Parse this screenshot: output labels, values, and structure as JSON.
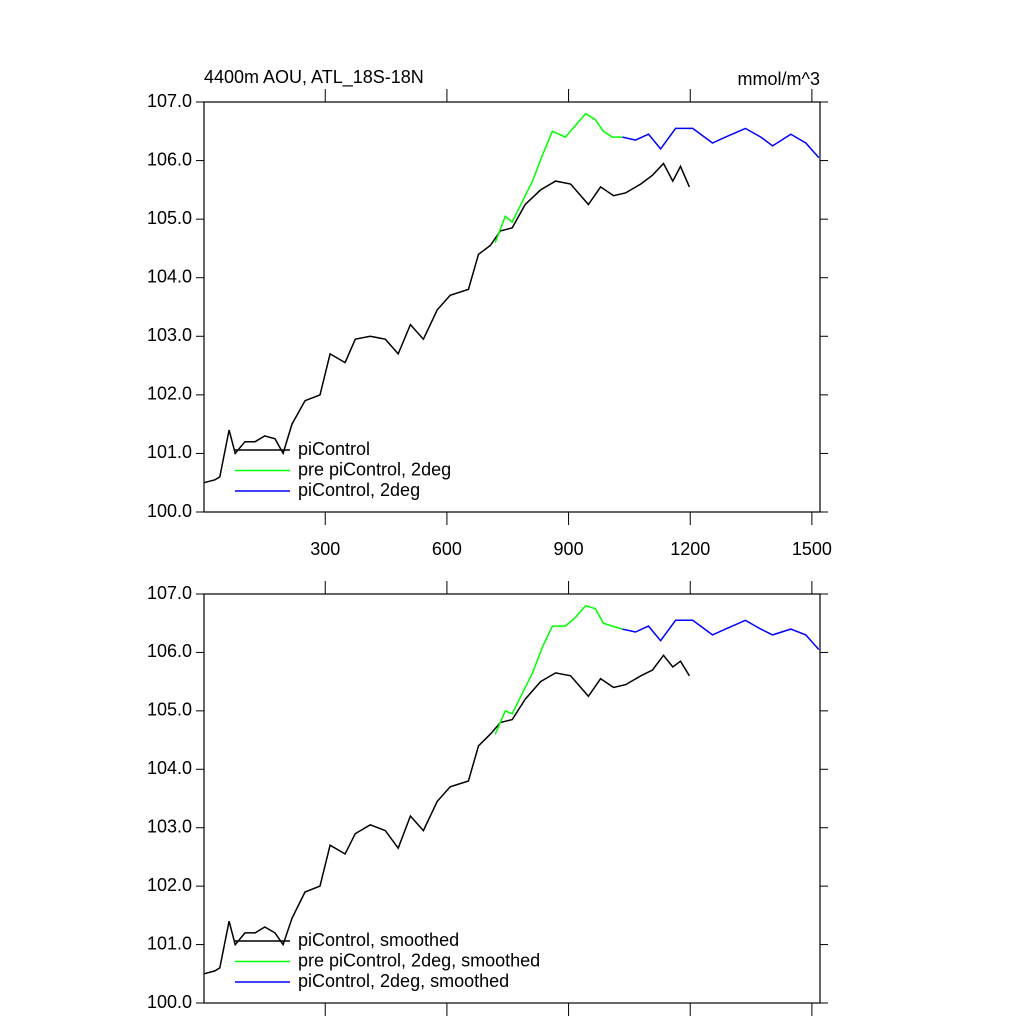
{
  "chart_data": [
    {
      "type": "line",
      "title": "4400m AOU, ATL_18S-18N",
      "units": "mmol/m^3",
      "xlim": [
        1,
        1520
      ],
      "xticks": [
        300,
        600,
        900,
        1200,
        1500
      ],
      "show_xtick_labels": true,
      "ylim": [
        100,
        107
      ],
      "yticks": [
        {
          "value": 100,
          "label": "100.0"
        },
        {
          "value": 101,
          "label": "101.0"
        },
        {
          "value": 102,
          "label": "102.0"
        },
        {
          "value": 103,
          "label": "103.0"
        },
        {
          "value": 104,
          "label": "104.0"
        },
        {
          "value": 105,
          "label": "105.0"
        },
        {
          "value": 106,
          "label": "106.0"
        },
        {
          "value": 107,
          "label": "107.0"
        }
      ],
      "legend": "lower-left",
      "series": [
        {
          "name": "piControl",
          "color": "#000000",
          "x": [
            1,
            28,
            40,
            63,
            78,
            102,
            127,
            151,
            176,
            196,
            218,
            250,
            287,
            312,
            349,
            374,
            411,
            448,
            480,
            510,
            542,
            576,
            608,
            653,
            678,
            707,
            732,
            761,
            793,
            831,
            868,
            905,
            949,
            979,
            1011,
            1041,
            1078,
            1107,
            1134,
            1157,
            1176,
            1198
          ],
          "values": [
            100.5,
            100.55,
            100.6,
            101.4,
            101.0,
            101.2,
            101.2,
            101.3,
            101.25,
            101.0,
            101.5,
            101.9,
            102.0,
            102.7,
            102.55,
            102.95,
            103.0,
            102.95,
            102.7,
            103.2,
            102.95,
            103.45,
            103.7,
            103.8,
            104.4,
            104.55,
            104.8,
            104.85,
            105.25,
            105.5,
            105.65,
            105.6,
            105.25,
            105.55,
            105.4,
            105.45,
            105.6,
            105.75,
            105.95,
            105.65,
            105.9,
            105.55
          ]
        },
        {
          "name": "pre piControl, 2deg",
          "color": "#00ff00",
          "x": [
            719,
            744,
            761,
            786,
            811,
            836,
            860,
            892,
            917,
            942,
            966,
            986,
            1008,
            1033
          ],
          "values": [
            104.6,
            105.05,
            104.95,
            105.3,
            105.65,
            106.1,
            106.5,
            106.4,
            106.6,
            106.8,
            106.7,
            106.5,
            106.4,
            106.4
          ]
        },
        {
          "name": "piControl, 2deg",
          "color": "#0000ff",
          "x": [
            1033,
            1065,
            1097,
            1127,
            1164,
            1206,
            1255,
            1287,
            1336,
            1374,
            1403,
            1448,
            1485,
            1517
          ],
          "values": [
            106.4,
            106.35,
            106.45,
            106.2,
            106.55,
            106.55,
            106.3,
            106.4,
            106.55,
            106.4,
            106.25,
            106.45,
            106.3,
            106.05
          ]
        }
      ]
    },
    {
      "type": "line",
      "xlim": [
        1,
        1520
      ],
      "xticks": [
        300,
        600,
        900,
        1200,
        1500
      ],
      "show_xtick_labels": false,
      "ylim": [
        100,
        107
      ],
      "yticks": [
        {
          "value": 100,
          "label": "100.0"
        },
        {
          "value": 101,
          "label": "101.0"
        },
        {
          "value": 102,
          "label": "102.0"
        },
        {
          "value": 103,
          "label": "103.0"
        },
        {
          "value": 104,
          "label": "104.0"
        },
        {
          "value": 105,
          "label": "105.0"
        },
        {
          "value": 106,
          "label": "106.0"
        },
        {
          "value": 107,
          "label": "107.0"
        }
      ],
      "legend": "lower-left",
      "series": [
        {
          "name": "piControl, smoothed",
          "color": "#000000",
          "x": [
            1,
            28,
            40,
            63,
            78,
            102,
            127,
            151,
            176,
            196,
            218,
            250,
            287,
            312,
            349,
            374,
            411,
            448,
            480,
            510,
            542,
            576,
            608,
            653,
            678,
            707,
            732,
            761,
            793,
            831,
            868,
            905,
            949,
            979,
            1011,
            1041,
            1078,
            1107,
            1134,
            1157,
            1176,
            1198
          ],
          "values": [
            100.5,
            100.55,
            100.6,
            101.4,
            101.0,
            101.2,
            101.2,
            101.3,
            101.2,
            101.0,
            101.45,
            101.9,
            102.0,
            102.7,
            102.55,
            102.9,
            103.05,
            102.95,
            102.65,
            103.2,
            102.95,
            103.45,
            103.7,
            103.8,
            104.4,
            104.6,
            104.8,
            104.85,
            105.2,
            105.5,
            105.65,
            105.6,
            105.25,
            105.55,
            105.4,
            105.45,
            105.6,
            105.7,
            105.95,
            105.75,
            105.85,
            105.6
          ]
        },
        {
          "name": "pre piControl, 2deg, smoothed",
          "color": "#00ff00",
          "x": [
            719,
            744,
            761,
            786,
            811,
            836,
            860,
            892,
            917,
            942,
            966,
            986,
            1008,
            1033
          ],
          "values": [
            104.6,
            105.0,
            104.95,
            105.3,
            105.65,
            106.1,
            106.45,
            106.45,
            106.6,
            106.8,
            106.75,
            106.5,
            106.45,
            106.4
          ]
        },
        {
          "name": "piControl, 2deg, smoothed",
          "color": "#0000ff",
          "x": [
            1033,
            1065,
            1097,
            1127,
            1164,
            1206,
            1255,
            1287,
            1336,
            1374,
            1403,
            1448,
            1485,
            1517
          ],
          "values": [
            106.4,
            106.35,
            106.45,
            106.2,
            106.55,
            106.55,
            106.3,
            106.4,
            106.55,
            106.4,
            106.3,
            106.4,
            106.3,
            106.05
          ]
        }
      ]
    }
  ]
}
